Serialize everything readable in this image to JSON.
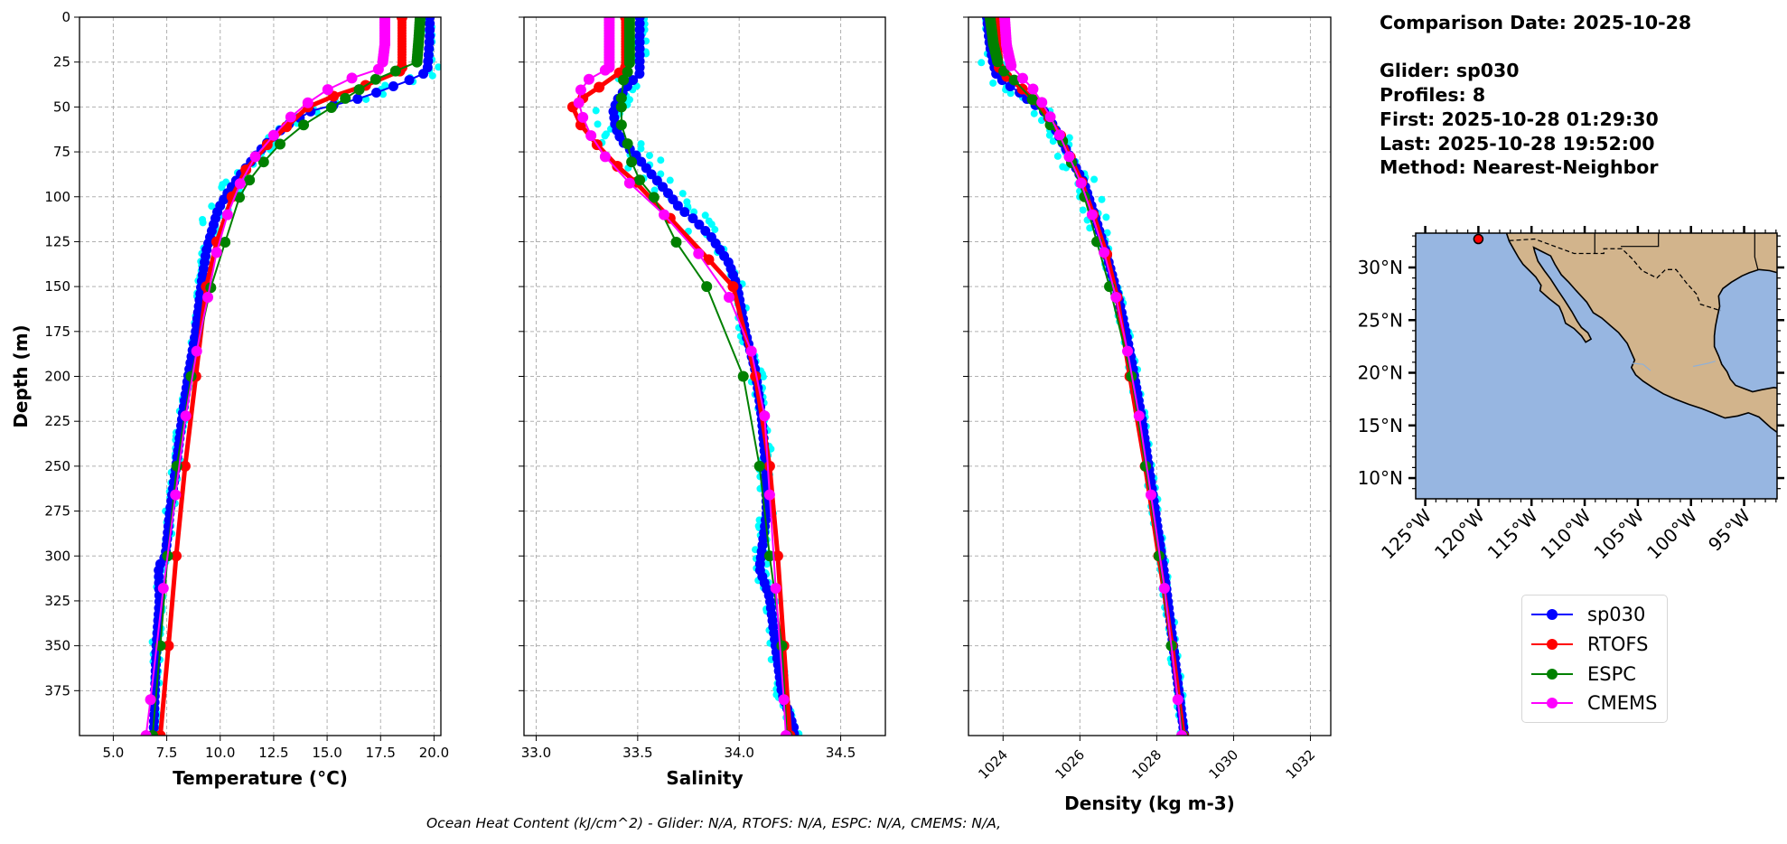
{
  "info": {
    "comparison_date": "Comparison Date: 2025-10-28",
    "glider": "Glider: sp030",
    "profiles": "Profiles: 8",
    "first": "First: 2025-10-28 01:29:30",
    "last": "Last: 2025-10-28 19:52:00",
    "method": "Method: Nearest-Neighbor"
  },
  "caption": "Ocean Heat Content (kJ/cm^2) - Glider: N/A,  RTOFS: N/A,  ESPC: N/A,  CMEMS: N/A,",
  "legend": [
    {
      "name": "sp030",
      "color": "#0000ff"
    },
    {
      "name": "RTOFS",
      "color": "#ff0000"
    },
    {
      "name": "ESPC",
      "color": "#008000"
    },
    {
      "name": "CMEMS",
      "color": "#ff00ff"
    }
  ],
  "individual_profiles_color": "#00ffff",
  "chart_data": [
    {
      "type": "line",
      "xlabel": "Temperature (°C)",
      "ylabel": "Depth (m)",
      "xlim": [
        3.42,
        20.32
      ],
      "ylim": [
        400,
        0
      ],
      "grid": true,
      "xticks": [
        "5.0",
        "7.5",
        "10.0",
        "12.5",
        "15.0",
        "17.5",
        "20.0"
      ],
      "yticks": [
        "0",
        "25",
        "50",
        "75",
        "100",
        "125",
        "150",
        "175",
        "200",
        "225",
        "250",
        "275",
        "300",
        "325",
        "350",
        "375"
      ],
      "series": [
        {
          "name": "sp030",
          "points": [
            [
              19.8,
              0
            ],
            [
              19.8,
              10
            ],
            [
              19.75,
              20
            ],
            [
              19.7,
              28
            ],
            [
              19.5,
              31.5
            ],
            [
              18.6,
              36.3
            ],
            [
              17.3,
              42
            ],
            [
              16.3,
              46
            ],
            [
              14.3,
              52
            ],
            [
              13.0,
              61
            ],
            [
              12.1,
              71
            ],
            [
              11.33,
              82
            ],
            [
              10.8,
              90
            ],
            [
              10.34,
              98
            ],
            [
              9.9,
              107
            ],
            [
              9.63,
              118
            ],
            [
              9.35,
              130
            ],
            [
              9.14,
              147
            ],
            [
              8.86,
              175
            ],
            [
              8.5,
              200
            ],
            [
              8.2,
              225
            ],
            [
              7.94,
              250
            ],
            [
              7.65,
              275
            ],
            [
              7.44,
              300
            ],
            [
              7.12,
              306
            ],
            [
              7.16,
              325
            ],
            [
              7.02,
              350
            ],
            [
              6.95,
              375
            ],
            [
              6.88,
              400
            ]
          ]
        },
        {
          "name": "RTOFS",
          "points": [
            [
              18.5,
              0
            ],
            [
              18.5,
              28
            ],
            [
              18.4,
              30
            ],
            [
              16.8,
              38
            ],
            [
              15.3,
              44
            ],
            [
              14.1,
              50
            ],
            [
              13.1,
              61
            ],
            [
              12.2,
              71
            ],
            [
              11.2,
              85
            ],
            [
              10.55,
              100
            ],
            [
              9.84,
              125
            ],
            [
              9.35,
              150
            ],
            [
              8.86,
              200
            ],
            [
              8.36,
              250
            ],
            [
              7.94,
              300
            ],
            [
              7.58,
              350
            ],
            [
              7.2,
              400
            ]
          ]
        },
        {
          "name": "ESPC",
          "points": [
            [
              19.35,
              0
            ],
            [
              19.3,
              10
            ],
            [
              19.2,
              25
            ],
            [
              18.2,
              30
            ],
            [
              17.27,
              34.6
            ],
            [
              16.5,
              40.3
            ],
            [
              15.85,
              45.2
            ],
            [
              15.2,
              50.3
            ],
            [
              13.9,
              60
            ],
            [
              12.8,
              70.7
            ],
            [
              12.03,
              80.6
            ],
            [
              11.37,
              90.7
            ],
            [
              10.9,
              100.3
            ],
            [
              10.23,
              125.3
            ],
            [
              9.56,
              150.6
            ],
            [
              8.64,
              200
            ],
            [
              7.97,
              250
            ],
            [
              7.54,
              300
            ],
            [
              7.2,
              350
            ],
            [
              6.84,
              400
            ]
          ]
        },
        {
          "name": "CMEMS",
          "points": [
            [
              17.7,
              0
            ],
            [
              17.7,
              15
            ],
            [
              17.6,
              25
            ],
            [
              17.4,
              29
            ],
            [
              16.16,
              33.9
            ],
            [
              15.03,
              40.3
            ],
            [
              14.1,
              47.7
            ],
            [
              13.3,
              55.6
            ],
            [
              12.5,
              65.8
            ],
            [
              11.64,
              77.7
            ],
            [
              10.93,
              92.7
            ],
            [
              10.34,
              110
            ],
            [
              9.83,
              131
            ],
            [
              9.42,
              156
            ],
            [
              8.9,
              186
            ],
            [
              8.39,
              222
            ],
            [
              7.91,
              266
            ],
            [
              7.34,
              318
            ],
            [
              6.74,
              380
            ],
            [
              6.53,
              400
            ]
          ]
        }
      ]
    },
    {
      "type": "line",
      "xlabel": "Salinity",
      "xlim": [
        32.94,
        34.72
      ],
      "ylim": [
        400,
        0
      ],
      "grid": true,
      "xticks": [
        "33.0",
        "33.5",
        "34.0",
        "34.5"
      ],
      "series": [
        {
          "name": "sp030",
          "points": [
            [
              33.51,
              0
            ],
            [
              33.51,
              28
            ],
            [
              33.51,
              31.4
            ],
            [
              33.46,
              36.8
            ],
            [
              33.4,
              46
            ],
            [
              33.38,
              52
            ],
            [
              33.39,
              61
            ],
            [
              33.42,
              68.8
            ],
            [
              33.49,
              76.7
            ],
            [
              33.56,
              86.5
            ],
            [
              33.64,
              96.6
            ],
            [
              33.71,
              106.7
            ],
            [
              33.77,
              111.8
            ],
            [
              33.86,
              122
            ],
            [
              33.95,
              137
            ],
            [
              33.99,
              150
            ],
            [
              34.03,
              175
            ],
            [
              34.08,
              197
            ],
            [
              34.11,
              222
            ],
            [
              34.13,
              249
            ],
            [
              34.135,
              276
            ],
            [
              34.1,
              307
            ],
            [
              34.15,
              323
            ],
            [
              34.18,
              351
            ],
            [
              34.21,
              376
            ],
            [
              34.27,
              396
            ]
          ]
        },
        {
          "name": "RTOFS",
          "points": [
            [
              33.44,
              0
            ],
            [
              33.44,
              28
            ],
            [
              33.41,
              31
            ],
            [
              33.31,
              39
            ],
            [
              33.23,
              45
            ],
            [
              33.18,
              50
            ],
            [
              33.22,
              60
            ],
            [
              33.3,
              71
            ],
            [
              33.4,
              83
            ],
            [
              33.49,
              92
            ],
            [
              33.66,
              112
            ],
            [
              33.85,
              135
            ],
            [
              33.97,
              150
            ],
            [
              34.08,
              200
            ],
            [
              34.15,
              250
            ],
            [
              34.19,
              300
            ],
            [
              34.22,
              350
            ],
            [
              34.25,
              400
            ]
          ]
        },
        {
          "name": "ESPC",
          "points": [
            [
              33.46,
              0
            ],
            [
              33.46,
              25.5
            ],
            [
              33.45,
              30.5
            ],
            [
              33.43,
              35
            ],
            [
              33.42,
              45
            ],
            [
              33.42,
              50
            ],
            [
              33.42,
              60
            ],
            [
              33.45,
              70.5
            ],
            [
              33.47,
              80.6
            ],
            [
              33.51,
              90.7
            ],
            [
              33.58,
              100.3
            ],
            [
              33.69,
              125.3
            ],
            [
              33.84,
              150
            ],
            [
              34.02,
              200
            ],
            [
              34.1,
              250
            ],
            [
              34.15,
              300
            ],
            [
              34.21,
              350
            ],
            [
              34.235,
              400
            ]
          ]
        },
        {
          "name": "CMEMS",
          "points": [
            [
              33.36,
              0
            ],
            [
              33.36,
              28
            ],
            [
              33.34,
              29.5
            ],
            [
              33.26,
              34.6
            ],
            [
              33.22,
              40.5
            ],
            [
              33.21,
              47.7
            ],
            [
              33.23,
              55.8
            ],
            [
              33.27,
              66
            ],
            [
              33.34,
              77.7
            ],
            [
              33.46,
              92.4
            ],
            [
              33.63,
              110
            ],
            [
              33.8,
              131.7
            ],
            [
              33.95,
              156
            ],
            [
              34.06,
              186
            ],
            [
              34.125,
              222
            ],
            [
              34.15,
              266
            ],
            [
              34.18,
              318
            ],
            [
              34.22,
              380
            ],
            [
              34.23,
              400
            ]
          ]
        }
      ]
    },
    {
      "type": "line",
      "xlabel": "Density (kg m-3)",
      "xlim": [
        1023.1,
        1032.53
      ],
      "ylim": [
        400,
        0
      ],
      "grid": true,
      "xticks": [
        "1024",
        "1026",
        "1028",
        "1030",
        "1032"
      ],
      "series": [
        {
          "name": "sp030",
          "points": [
            [
              1023.58,
              0
            ],
            [
              1023.65,
              15
            ],
            [
              1023.74,
              25
            ],
            [
              1023.82,
              31.5
            ],
            [
              1024.05,
              36.6
            ],
            [
              1024.41,
              41.6
            ],
            [
              1024.68,
              46.6
            ],
            [
              1025.05,
              52
            ],
            [
              1025.3,
              60
            ],
            [
              1025.55,
              70
            ],
            [
              1025.8,
              80
            ],
            [
              1026.1,
              92
            ],
            [
              1026.38,
              110
            ],
            [
              1026.68,
              131
            ],
            [
              1027.0,
              156
            ],
            [
              1027.3,
              186
            ],
            [
              1027.6,
              222
            ],
            [
              1027.9,
              266
            ],
            [
              1028.25,
              318
            ],
            [
              1028.6,
              380
            ],
            [
              1028.72,
              400
            ]
          ]
        },
        {
          "name": "RTOFS",
          "points": [
            [
              1023.8,
              0
            ],
            [
              1023.85,
              15
            ],
            [
              1023.9,
              28
            ],
            [
              1024.1,
              33
            ],
            [
              1024.5,
              40
            ],
            [
              1024.8,
              46
            ],
            [
              1025.2,
              56
            ],
            [
              1025.5,
              66
            ],
            [
              1025.75,
              78
            ],
            [
              1026.05,
              92
            ],
            [
              1026.35,
              110
            ],
            [
              1026.7,
              132
            ],
            [
              1026.97,
              156
            ],
            [
              1027.3,
              200
            ],
            [
              1027.7,
              250
            ],
            [
              1028.05,
              300
            ],
            [
              1028.4,
              350
            ],
            [
              1028.7,
              400
            ]
          ]
        },
        {
          "name": "ESPC",
          "points": [
            [
              1023.66,
              0
            ],
            [
              1023.75,
              15
            ],
            [
              1023.86,
              24.8
            ],
            [
              1024.02,
              30
            ],
            [
              1024.29,
              35
            ],
            [
              1024.76,
              45.8
            ],
            [
              1025.23,
              60
            ],
            [
              1025.55,
              69
            ],
            [
              1025.78,
              81
            ],
            [
              1026.12,
              100
            ],
            [
              1026.44,
              125
            ],
            [
              1026.77,
              150
            ],
            [
              1027.34,
              200
            ],
            [
              1027.71,
              250
            ],
            [
              1028.06,
              300
            ],
            [
              1028.38,
              350
            ],
            [
              1028.68,
              400
            ]
          ]
        },
        {
          "name": "CMEMS",
          "points": [
            [
              1024.04,
              0
            ],
            [
              1024.09,
              15.6
            ],
            [
              1024.21,
              27
            ],
            [
              1024.51,
              34
            ],
            [
              1024.78,
              40
            ],
            [
              1025.01,
              47.5
            ],
            [
              1025.23,
              55.5
            ],
            [
              1025.47,
              65.6
            ],
            [
              1025.72,
              77.7
            ],
            [
              1026.03,
              92.4
            ],
            [
              1026.32,
              110
            ],
            [
              1026.63,
              131
            ],
            [
              1026.94,
              156
            ],
            [
              1027.24,
              186
            ],
            [
              1027.54,
              222
            ],
            [
              1027.85,
              266
            ],
            [
              1028.2,
              318
            ],
            [
              1028.55,
              380
            ],
            [
              1028.65,
              400
            ]
          ]
        }
      ]
    }
  ],
  "map": {
    "lon_range": [
      -125.9,
      -91.9
    ],
    "lat_range": [
      8.03,
      33.26
    ],
    "lat_ticks": [
      "10°N",
      "15°N",
      "20°N",
      "25°N",
      "30°N"
    ],
    "lon_ticks": [
      "125°W",
      "120°W",
      "115°W",
      "110°W",
      "105°W",
      "100°W",
      "95°W"
    ],
    "glider_position": [
      -120.0,
      32.7
    ],
    "ocean_color": "#97b6e1",
    "land_color": "#d2b48c",
    "marker_color": "#ff0000"
  }
}
